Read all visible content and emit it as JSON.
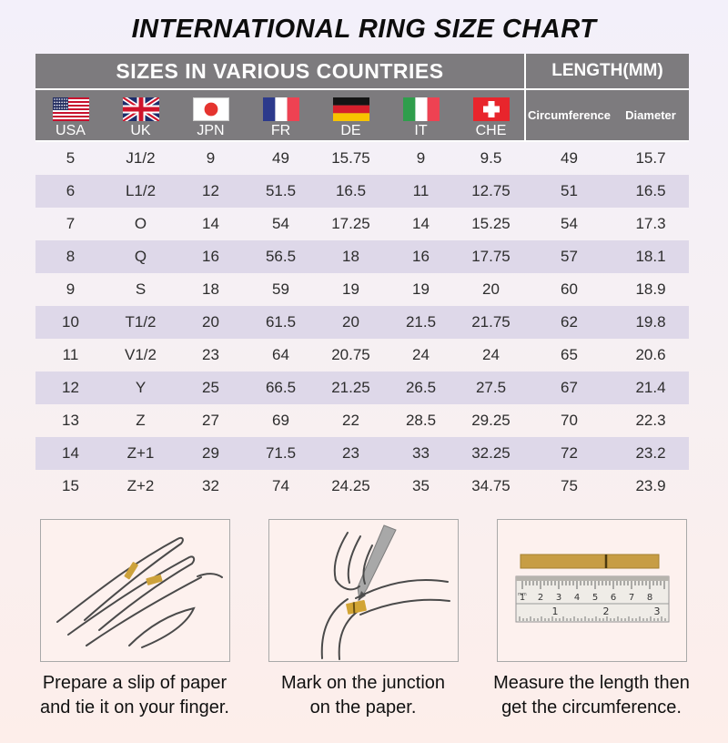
{
  "page": {
    "title": "INTERNATIONAL RING SIZE CHART"
  },
  "table": {
    "sizes_header": "SIZES IN VARIOUS COUNTRIES",
    "length_header": "LENGTH(MM)",
    "countries": [
      {
        "code": "USA",
        "flag": "usa-flag-icon"
      },
      {
        "code": "UK",
        "flag": "uk-flag-icon"
      },
      {
        "code": "JPN",
        "flag": "japan-flag-icon"
      },
      {
        "code": "FR",
        "flag": "france-flag-icon"
      },
      {
        "code": "DE",
        "flag": "germany-flag-icon"
      },
      {
        "code": "IT",
        "flag": "italy-flag-icon"
      },
      {
        "code": "CHE",
        "flag": "switzerland-flag-icon"
      }
    ],
    "length_columns": [
      "Circumference",
      "Diameter"
    ]
  },
  "chart_data": {
    "type": "table",
    "title": "INTERNATIONAL RING SIZE CHART",
    "columns": [
      "USA",
      "UK",
      "JPN",
      "FR",
      "DE",
      "IT",
      "CHE",
      "Circumference",
      "Diameter"
    ],
    "rows": [
      [
        "5",
        "J1/2",
        "9",
        "49",
        "15.75",
        "9",
        "9.5",
        "49",
        "15.7"
      ],
      [
        "6",
        "L1/2",
        "12",
        "51.5",
        "16.5",
        "11",
        "12.75",
        "51",
        "16.5"
      ],
      [
        "7",
        "O",
        "14",
        "54",
        "17.25",
        "14",
        "15.25",
        "54",
        "17.3"
      ],
      [
        "8",
        "Q",
        "16",
        "56.5",
        "18",
        "16",
        "17.75",
        "57",
        "18.1"
      ],
      [
        "9",
        "S",
        "18",
        "59",
        "19",
        "19",
        "20",
        "60",
        "18.9"
      ],
      [
        "10",
        "T1/2",
        "20",
        "61.5",
        "20",
        "21.5",
        "21.75",
        "62",
        "19.8"
      ],
      [
        "11",
        "V1/2",
        "23",
        "64",
        "20.75",
        "24",
        "24",
        "65",
        "20.6"
      ],
      [
        "12",
        "Y",
        "25",
        "66.5",
        "21.25",
        "26.5",
        "27.5",
        "67",
        "21.4"
      ],
      [
        "13",
        "Z",
        "27",
        "69",
        "22",
        "28.5",
        "29.25",
        "70",
        "22.3"
      ],
      [
        "14",
        "Z+1",
        "29",
        "71.5",
        "23",
        "33",
        "32.25",
        "72",
        "23.2"
      ],
      [
        "15",
        "Z+2",
        "32",
        "74",
        "24.25",
        "35",
        "34.75",
        "75",
        "23.9"
      ]
    ]
  },
  "instructions": [
    {
      "illustration": "hand-with-paper-strip-illustration",
      "caption": [
        "Prepare a slip of paper",
        "and tie it on your finger."
      ]
    },
    {
      "illustration": "mark-junction-illustration",
      "caption": [
        "Mark on the junction",
        "on the paper."
      ]
    },
    {
      "illustration": "ruler-measure-illustration",
      "caption": [
        "Measure the length then",
        "get the circumference."
      ]
    }
  ],
  "colors": {
    "header_bg": "#7d7b7e",
    "row_alt_bg": "#ded8e9",
    "page_top": "#f3f0fa",
    "page_bottom": "#fdeeea",
    "accent_gold": "#cda23b",
    "text": "#2d2d2d"
  }
}
